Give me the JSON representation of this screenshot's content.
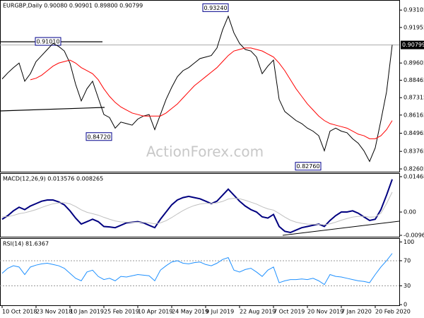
{
  "chart_data": [
    {
      "type": "line",
      "title": "EURGBP,Daily  0.90080 0.90901 0.89800 0.90799",
      "watermark": "ActionForex.com",
      "ylim": [
        0.8242,
        0.9377
      ],
      "yticks": [
        0.93105,
        0.91955,
        0.89605,
        0.88465,
        0.87315,
        0.86165,
        0.84965,
        0.83765,
        0.82605
      ],
      "last_price": 0.90799,
      "annotations": [
        {
          "value": 0.9101,
          "label": "0.91010"
        },
        {
          "value": 0.9324,
          "label": "0.93240"
        },
        {
          "value": 0.8472,
          "label": "0.84720"
        },
        {
          "value": 0.8276,
          "label": "0.82760"
        }
      ],
      "series": [
        {
          "color": "#000000",
          "values": [
            0.8855,
            0.8895,
            0.893,
            0.896,
            0.884,
            0.889,
            0.897,
            0.901,
            0.905,
            0.909,
            0.907,
            0.904,
            0.896,
            0.882,
            0.871,
            0.879,
            0.884,
            0.873,
            0.862,
            0.86,
            0.853,
            0.857,
            0.856,
            0.855,
            0.859,
            0.861,
            0.862,
            0.852,
            0.862,
            0.872,
            0.88,
            0.887,
            0.891,
            0.893,
            0.896,
            0.899,
            0.9,
            0.901,
            0.906,
            0.918,
            0.927,
            0.916,
            0.909,
            0.905,
            0.904,
            0.9,
            0.889,
            0.894,
            0.898,
            0.872,
            0.864,
            0.861,
            0.858,
            0.856,
            0.853,
            0.851,
            0.848,
            0.838,
            0.851,
            0.853,
            0.851,
            0.85,
            0.846,
            0.843,
            0.838,
            0.831,
            0.84,
            0.858,
            0.877,
            0.90799
          ]
        },
        {
          "color": "#ff0000",
          "values": [
            null,
            null,
            null,
            null,
            null,
            0.885,
            0.886,
            0.888,
            0.891,
            0.894,
            0.896,
            0.897,
            0.898,
            0.896,
            0.893,
            0.891,
            0.889,
            0.885,
            0.879,
            0.874,
            0.87,
            0.867,
            0.865,
            0.863,
            0.862,
            0.861,
            0.861,
            0.861,
            0.861,
            0.863,
            0.866,
            0.869,
            0.873,
            0.877,
            0.881,
            0.884,
            0.887,
            0.89,
            0.893,
            0.897,
            0.901,
            0.904,
            0.905,
            0.906,
            0.906,
            0.905,
            0.904,
            0.902,
            0.9,
            0.896,
            0.891,
            0.885,
            0.879,
            0.874,
            0.869,
            0.865,
            0.861,
            0.858,
            0.856,
            0.855,
            0.854,
            0.853,
            0.851,
            0.849,
            0.848,
            0.846,
            0.846,
            0.848,
            0.852,
            0.858
          ]
        }
      ]
    },
    {
      "type": "line",
      "title": "MACD(12,26,9) 0.013576 0.008265",
      "ylim": [
        -0.01026,
        0.01615
      ],
      "yticks": [
        0.014683,
        {
          "value": 0,
          "label": "0.00"
        },
        -0.009673
      ],
      "series": [
        {
          "color": "#000080",
          "values": [
            -0.003,
            -0.0015,
            0.0005,
            0.002,
            0.001,
            0.0025,
            0.0035,
            0.0045,
            0.005,
            0.005,
            0.0042,
            0.003,
            0.0005,
            -0.0025,
            -0.005,
            -0.004,
            -0.003,
            -0.004,
            -0.006,
            -0.0062,
            -0.0065,
            -0.0055,
            -0.0045,
            -0.0042,
            -0.004,
            -0.0045,
            -0.0055,
            -0.0065,
            -0.003,
            0.0,
            0.003,
            0.005,
            0.006,
            0.0065,
            0.006,
            0.0055,
            0.0045,
            0.0035,
            0.0045,
            0.007,
            0.0095,
            0.007,
            0.0045,
            0.0025,
            0.001,
            0.0,
            -0.002,
            -0.0025,
            -0.001,
            -0.006,
            -0.008,
            -0.0085,
            -0.0075,
            -0.0065,
            -0.006,
            -0.0055,
            -0.005,
            -0.006,
            -0.0035,
            -0.0015,
            0.0,
            0.0,
            0.0005,
            -0.0005,
            -0.002,
            -0.0035,
            -0.003,
            0.001,
            0.007,
            0.013576
          ]
        },
        {
          "color": "#c0c0c0",
          "values": [
            -0.002,
            -0.0019,
            -0.0014,
            -0.0007,
            -0.0003,
            0.0003,
            0.001,
            0.0019,
            0.0027,
            0.0034,
            0.0038,
            0.0039,
            0.0034,
            0.0023,
            0.0009,
            -0.0001,
            -0.0007,
            -0.0013,
            -0.0022,
            -0.003,
            -0.0037,
            -0.0041,
            -0.0042,
            -0.0042,
            -0.0042,
            -0.0043,
            -0.0045,
            -0.0049,
            -0.0045,
            -0.0036,
            -0.0023,
            -0.0008,
            0.0006,
            0.0018,
            0.0027,
            0.0033,
            0.0036,
            0.0036,
            0.0038,
            0.0044,
            0.0054,
            0.0057,
            0.0055,
            0.0049,
            0.0041,
            0.0033,
            0.0022,
            0.0013,
            0.0008,
            -0.0006,
            -0.0021,
            -0.0034,
            -0.0042,
            -0.0047,
            -0.005,
            -0.0051,
            -0.0051,
            -0.0053,
            -0.0049,
            -0.0042,
            -0.0034,
            -0.0027,
            -0.0021,
            -0.0018,
            -0.0018,
            -0.0021,
            -0.002,
            -0.0005,
            0.0035,
            0.008265
          ]
        }
      ]
    },
    {
      "type": "line",
      "title": "RSI(14) 81.6367",
      "ylim": [
        -1,
        106
      ],
      "yticks": [
        100,
        70,
        30,
        0
      ],
      "levels": [
        70,
        30
      ],
      "categories": [
        "10 Oct 2018",
        null,
        null,
        null,
        null,
        null,
        "23 Nov 2018",
        null,
        null,
        null,
        null,
        null,
        "10 Jan 2019",
        null,
        null,
        null,
        null,
        null,
        "25 Feb 2019",
        null,
        null,
        null,
        null,
        null,
        "10 Apr 2019",
        null,
        null,
        null,
        null,
        null,
        "24 May 2019",
        null,
        null,
        null,
        null,
        null,
        "9 Jul 2019",
        null,
        null,
        null,
        null,
        null,
        "22 Aug 2019",
        null,
        null,
        null,
        null,
        null,
        "7 Oct 2019",
        null,
        null,
        null,
        null,
        null,
        "20 Nov 2019",
        null,
        null,
        null,
        null,
        null,
        "7 Jan 2020",
        null,
        null,
        null,
        null,
        null,
        "20 Feb 2020",
        null,
        null,
        null
      ],
      "series": [
        {
          "color": "#1e90ff",
          "values": [
            50,
            58,
            62,
            60,
            48,
            60,
            63,
            65,
            66,
            64,
            62,
            58,
            50,
            42,
            38,
            52,
            55,
            45,
            40,
            42,
            38,
            45,
            44,
            46,
            48,
            47,
            46,
            38,
            55,
            62,
            68,
            70,
            66,
            65,
            67,
            68,
            64,
            62,
            66,
            72,
            75,
            55,
            52,
            56,
            58,
            52,
            45,
            55,
            60,
            35,
            38,
            40,
            40,
            41,
            40,
            42,
            38,
            32,
            48,
            45,
            44,
            42,
            40,
            38,
            37,
            35,
            48,
            60,
            70,
            81.6367
          ]
        }
      ]
    }
  ]
}
